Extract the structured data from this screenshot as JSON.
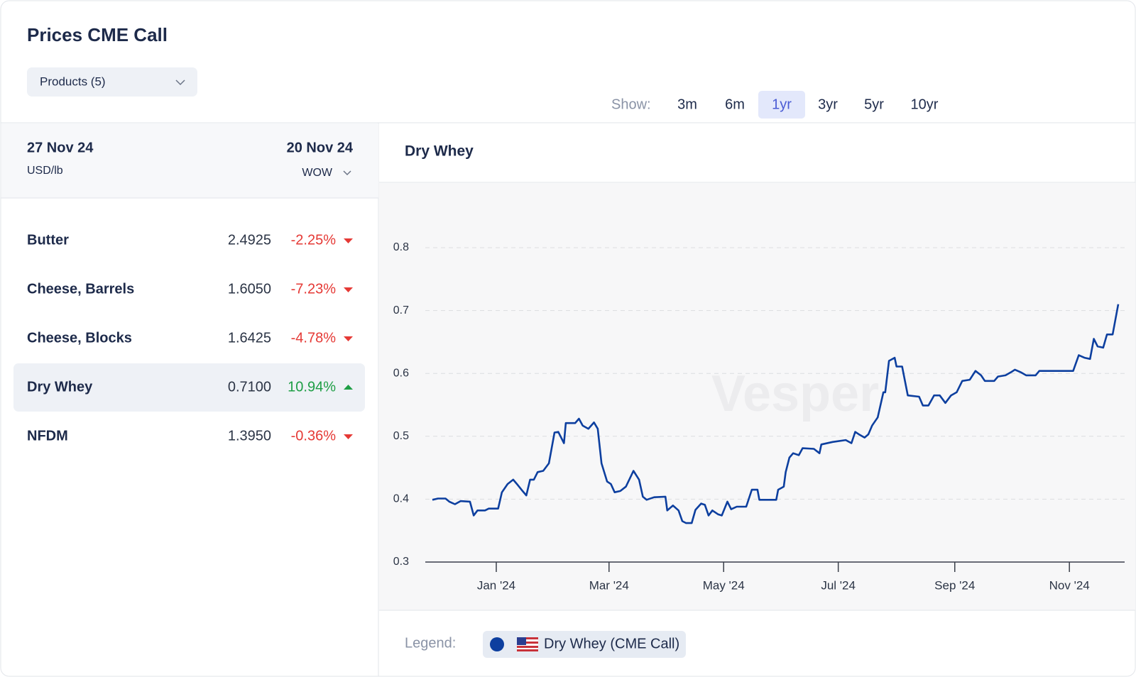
{
  "header": {
    "title": "Prices CME Call",
    "products": "Products (5)"
  },
  "timeframe": {
    "label": "Show:",
    "options": [
      "3m",
      "6m",
      "1yr",
      "3yr",
      "5yr",
      "10yr"
    ],
    "selected_index": 2
  },
  "table": {
    "date": "27 Nov 24",
    "unit": "USD/lb",
    "compare_date": "20 Nov 24",
    "compare_mode": "WOW",
    "selected_index": 3,
    "rows": [
      {
        "name": "Butter",
        "price": "2.4925",
        "change": "-2.25%"
      },
      {
        "name": "Cheese, Barrels",
        "price": "1.6050",
        "change": "-7.23%"
      },
      {
        "name": "Cheese, Blocks",
        "price": "1.6425",
        "change": "-4.78%"
      },
      {
        "name": "Dry Whey",
        "price": "0.7100",
        "change": "10.94%"
      },
      {
        "name": "NFDM",
        "price": "1.3950",
        "change": "-0.36%"
      }
    ]
  },
  "chart_data": {
    "type": "line",
    "title": "Dry Whey",
    "watermark": "Vesper",
    "x": [
      0,
      3,
      7,
      9,
      12,
      15,
      20,
      22,
      24,
      28,
      30,
      35,
      37,
      40,
      43,
      45,
      48,
      50,
      52,
      54,
      56,
      59,
      62,
      65,
      67,
      70,
      71,
      76,
      78,
      80,
      83,
      86,
      88,
      90,
      93,
      95,
      97,
      100,
      103,
      107,
      110,
      112,
      114,
      118,
      124,
      125,
      128,
      131,
      133,
      135,
      138,
      140,
      143,
      145,
      147,
      149,
      152,
      154,
      157,
      159,
      162,
      167,
      170,
      173,
      174,
      180,
      183,
      184,
      187,
      188,
      190,
      192,
      195,
      197,
      203,
      206,
      207,
      213,
      220,
      223,
      225,
      227,
      230,
      232,
      234,
      237,
      240,
      241,
      243,
      246,
      247,
      250,
      253,
      259,
      261,
      264,
      267,
      270,
      273,
      276,
      279,
      282,
      286,
      289,
      292,
      294,
      299,
      301,
      305,
      308,
      310,
      313,
      316,
      321,
      323,
      330,
      341,
      344,
      347,
      350,
      352,
      354,
      357,
      359,
      362,
      365
    ],
    "series": [
      {
        "name": "Dry Whey (CME Call)",
        "color": "#0d3f9f",
        "values": [
          0.399,
          0.401,
          0.401,
          0.396,
          0.392,
          0.397,
          0.396,
          0.374,
          0.382,
          0.382,
          0.385,
          0.385,
          0.411,
          0.424,
          0.431,
          0.424,
          0.413,
          0.406,
          0.431,
          0.431,
          0.443,
          0.445,
          0.457,
          0.506,
          0.507,
          0.489,
          0.521,
          0.521,
          0.528,
          0.517,
          0.512,
          0.522,
          0.512,
          0.457,
          0.428,
          0.424,
          0.411,
          0.413,
          0.42,
          0.445,
          0.431,
          0.404,
          0.399,
          0.403,
          0.404,
          0.382,
          0.39,
          0.382,
          0.365,
          0.362,
          0.362,
          0.383,
          0.393,
          0.391,
          0.374,
          0.382,
          0.376,
          0.374,
          0.396,
          0.384,
          0.388,
          0.388,
          0.415,
          0.415,
          0.399,
          0.399,
          0.399,
          0.415,
          0.42,
          0.443,
          0.466,
          0.473,
          0.47,
          0.481,
          0.48,
          0.473,
          0.487,
          0.491,
          0.494,
          0.489,
          0.507,
          0.503,
          0.498,
          0.503,
          0.517,
          0.53,
          0.57,
          0.57,
          0.62,
          0.625,
          0.611,
          0.611,
          0.565,
          0.563,
          0.549,
          0.549,
          0.565,
          0.565,
          0.553,
          0.565,
          0.57,
          0.588,
          0.59,
          0.604,
          0.597,
          0.588,
          0.588,
          0.595,
          0.597,
          0.602,
          0.606,
          0.602,
          0.597,
          0.597,
          0.604,
          0.604,
          0.604,
          0.629,
          0.625,
          0.623,
          0.655,
          0.643,
          0.641,
          0.662,
          0.662,
          0.71
        ]
      }
    ],
    "xlim": [
      0,
      365
    ],
    "xticks": [
      {
        "value": 34,
        "label": "Jan '24"
      },
      {
        "value": 94,
        "label": "Mar '24"
      },
      {
        "value": 155,
        "label": "May '24"
      },
      {
        "value": 216,
        "label": "Jul '24"
      },
      {
        "value": 278,
        "label": "Sep '24"
      },
      {
        "value": 339,
        "label": "Nov '24"
      }
    ],
    "ylim": [
      0.3,
      0.8
    ],
    "yticks": [
      0.3,
      0.4,
      0.5,
      0.6,
      0.7,
      0.8
    ],
    "grid": true,
    "legend_label": "Legend:"
  }
}
